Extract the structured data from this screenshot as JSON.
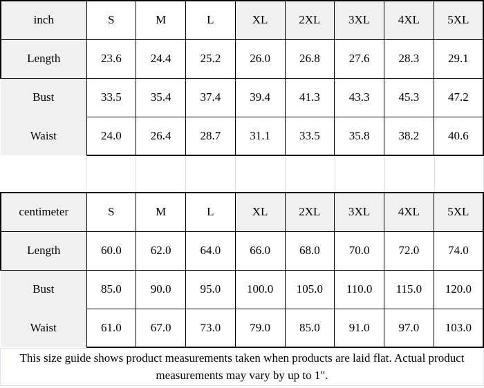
{
  "chart_data": [
    {
      "type": "table",
      "unit": "inch",
      "sizes": [
        "S",
        "M",
        "L",
        "XL",
        "2XL",
        "3XL",
        "4XL",
        "5XL"
      ],
      "rows": [
        {
          "label": "Length",
          "values": [
            "23.6",
            "24.4",
            "25.2",
            "26.0",
            "26.8",
            "27.6",
            "28.3",
            "29.1"
          ]
        },
        {
          "label": "Bust",
          "values": [
            "33.5",
            "35.4",
            "37.4",
            "39.4",
            "41.3",
            "43.3",
            "45.3",
            "47.2"
          ]
        },
        {
          "label": "Waist",
          "values": [
            "24.0",
            "26.4",
            "28.7",
            "31.1",
            "33.5",
            "35.8",
            "38.2",
            "40.6"
          ]
        }
      ]
    },
    {
      "type": "table",
      "unit": "centimeter",
      "sizes": [
        "S",
        "M",
        "L",
        "XL",
        "2XL",
        "3XL",
        "4XL",
        "5XL"
      ],
      "rows": [
        {
          "label": "Length",
          "values": [
            "60.0",
            "62.0",
            "64.0",
            "66.0",
            "68.0",
            "70.0",
            "72.0",
            "74.0"
          ]
        },
        {
          "label": "Bust",
          "values": [
            "85.0",
            "90.0",
            "95.0",
            "100.0",
            "105.0",
            "110.0",
            "115.0",
            "120.0"
          ]
        },
        {
          "label": "Waist",
          "values": [
            "61.0",
            "67.0",
            "73.0",
            "79.0",
            "85.0",
            "91.0",
            "97.0",
            "103.0"
          ]
        }
      ]
    }
  ],
  "footer": {
    "line1": "This size guide shows product measurements taken when products are laid flat. Actual product",
    "line2": "measurements may vary by up to 1\"."
  },
  "colors": {
    "cell_gray": "#f0f0f0",
    "border_black": "#000000",
    "faint_line": "#d3dde8"
  }
}
